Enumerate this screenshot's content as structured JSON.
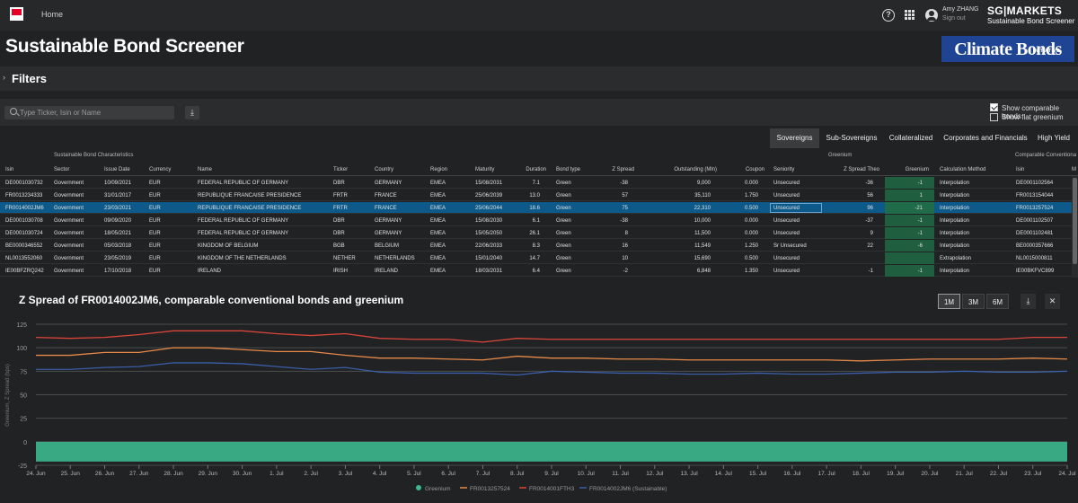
{
  "topbar": {
    "home": "Home",
    "user_name": "Amy ZHANG",
    "sign_out": "Sign out",
    "brand": "SG|MARKETS",
    "brand_sub": "Sustainable Bond Screener"
  },
  "page_title": "Sustainable Bond Screener",
  "partner_logo": {
    "text": "Climate Bonds",
    "initiative": "INITIATIVE"
  },
  "filters": {
    "label": "Filters"
  },
  "search": {
    "placeholder": "Type Ticker, Isin or Name"
  },
  "options": {
    "show_comparable": "Show comparable bonds",
    "show_flat": "Show flat greenium",
    "show_comparable_checked": true,
    "show_flat_checked": false
  },
  "tabs": [
    "Sovereigns",
    "Sub-Sovereigns",
    "Collateralized",
    "Corporates and Financials",
    "High Yield"
  ],
  "active_tab": "Sovereigns",
  "groups": {
    "characteristics": "Sustainable Bond Characteristics",
    "greenium": "Greenium",
    "conventional": "Comparable Conventiona"
  },
  "columns": [
    "Isin",
    "Sector",
    "Issue Date",
    "Currency",
    "Name",
    "Ticker",
    "Country",
    "Region",
    "Maturity",
    "Duration",
    "Bond type",
    "Z Spread",
    "Outstanding (Mln)",
    "Coupon",
    "Seniority",
    "Z Spread Theo",
    "Greenium",
    "Calculation Method",
    "Isin",
    "M"
  ],
  "rows": [
    [
      "DE0001030732",
      "Government",
      "10/09/2021",
      "EUR",
      "FEDERAL REPUBLIC OF GERMANY",
      "DBR",
      "GERMANY",
      "EMEA",
      "15/08/2031",
      "7.1",
      "Green",
      "-38",
      "9,000",
      "0.000",
      "Unsecured",
      "-36",
      "-1",
      "Interpolation",
      "DE0001102564"
    ],
    [
      "FR0013234333",
      "Government",
      "31/01/2017",
      "EUR",
      "REPUBLIQUE FRANCAISE PRESIDENCE",
      "FRTR",
      "FRANCE",
      "EMEA",
      "25/06/2039",
      "13.0",
      "Green",
      "57",
      "35,110",
      "1.750",
      "Unsecured",
      "56",
      "1",
      "Interpolation",
      "FR0013154044"
    ],
    [
      "FR0014002JM6",
      "Government",
      "23/03/2021",
      "EUR",
      "REPUBLIQUE FRANCAISE PRESIDENCE",
      "FRTR",
      "FRANCE",
      "EMEA",
      "25/06/2044",
      "18.6",
      "Green",
      "75",
      "22,310",
      "0.500",
      "Unsecured",
      "96",
      "-21",
      "Interpolation",
      "FR0013257524"
    ],
    [
      "DE0001030708",
      "Government",
      "09/09/2020",
      "EUR",
      "FEDERAL REPUBLIC OF GERMANY",
      "DBR",
      "GERMANY",
      "EMEA",
      "15/08/2030",
      "6.1",
      "Green",
      "-38",
      "10,000",
      "0.000",
      "Unsecured",
      "-37",
      "-1",
      "Interpolation",
      "DE0001102507"
    ],
    [
      "DE0001030724",
      "Government",
      "18/05/2021",
      "EUR",
      "FEDERAL REPUBLIC OF GERMANY",
      "DBR",
      "GERMANY",
      "EMEA",
      "15/05/2050",
      "26.1",
      "Green",
      "8",
      "11,500",
      "0.000",
      "Unsecured",
      "9",
      "-1",
      "Interpolation",
      "DE0001102481"
    ],
    [
      "BE0000346552",
      "Government",
      "05/03/2018",
      "EUR",
      "KINGDOM OF BELGIUM",
      "BGB",
      "BELGIUM",
      "EMEA",
      "22/06/2033",
      "8.3",
      "Green",
      "16",
      "11,549",
      "1.250",
      "Sr Unsecured",
      "22",
      "-6",
      "Interpolation",
      "BE0000357666"
    ],
    [
      "NL0013552060",
      "Government",
      "23/05/2019",
      "EUR",
      "KINGDOM OF THE NETHERLANDS",
      "NETHER",
      "NETHERLANDS",
      "EMEA",
      "15/01/2040",
      "14.7",
      "Green",
      "10",
      "15,690",
      "0.500",
      "Unsecured",
      "",
      "",
      "Extrapolation",
      "NL0015000811"
    ],
    [
      "IE00BFZRQ242",
      "Government",
      "17/10/2018",
      "EUR",
      "IRELAND",
      "IRISH",
      "IRELAND",
      "EMEA",
      "18/03/2031",
      "6.4",
      "Green",
      "-2",
      "6,848",
      "1.350",
      "Unsecured",
      "-1",
      "-1",
      "Interpolation",
      "IE00BKFVC899"
    ]
  ],
  "selected_row": 2,
  "chart": {
    "title": "Z Spread of FR0014002JM6, comparable conventional bonds and greenium",
    "ranges": [
      "1M",
      "3M",
      "6M"
    ],
    "active_range": "1M"
  },
  "chart_data": {
    "type": "line",
    "ylabel": "Greenium, Z Spread (bps)",
    "ylim": [
      -25,
      125
    ],
    "yticks": [
      125,
      100,
      75,
      50,
      25,
      0,
      -25
    ],
    "grid": true,
    "legend_position": "bottom",
    "x": [
      "24. Jun",
      "25. Jun",
      "26. Jun",
      "27. Jun",
      "28. Jun",
      "29. Jun",
      "30. Jun",
      "1. Jul",
      "2. Jul",
      "3. Jul",
      "4. Jul",
      "5. Jul",
      "6. Jul",
      "7. Jul",
      "8. Jul",
      "9. Jul",
      "10. Jul",
      "11. Jul",
      "12. Jul",
      "13. Jul",
      "14. Jul",
      "15. Jul",
      "16. Jul",
      "17. Jul",
      "18. Jul",
      "19. Jul",
      "20. Jul",
      "21. Jul",
      "22. Jul",
      "23. Jul",
      "24. Jul"
    ],
    "series": [
      {
        "name": "Greenium",
        "type": "area",
        "color": "#3cb88e",
        "values": [
          -21,
          -21,
          -21,
          -21,
          -21,
          -21,
          -21,
          -21,
          -21,
          -21,
          -21,
          -21,
          -21,
          -21,
          -21,
          -21,
          -21,
          -21,
          -21,
          -21,
          -21,
          -21,
          -21,
          -21,
          -21,
          -21,
          -21,
          -21,
          -21,
          -21,
          -21
        ]
      },
      {
        "name": "FR0013257524",
        "type": "line",
        "color": "#e8894a",
        "values": [
          92,
          92,
          95,
          95,
          100,
          100,
          98,
          96,
          96,
          92,
          89,
          89,
          88,
          87,
          91,
          89,
          89,
          88,
          88,
          87,
          87,
          87,
          87,
          87,
          86,
          87,
          88,
          88,
          88,
          89,
          88
        ]
      },
      {
        "name": "FR0014001FTH3",
        "type": "line",
        "color": "#d9453a",
        "values": [
          111,
          110,
          111,
          114,
          118,
          118,
          118,
          115,
          113,
          115,
          110,
          109,
          109,
          106,
          110,
          109,
          109,
          109,
          109,
          109,
          109,
          109,
          109,
          109,
          109,
          109,
          109,
          109,
          109,
          111,
          111
        ]
      },
      {
        "name": "FR0014002JM6 (Sustainable)",
        "type": "line",
        "color": "#3a5ea8",
        "values": [
          77,
          77,
          79,
          80,
          84,
          84,
          83,
          80,
          77,
          79,
          74,
          73,
          73,
          73,
          71,
          75,
          74,
          73,
          73,
          72,
          72,
          73,
          72,
          72,
          73,
          74,
          74,
          75,
          74,
          74,
          75
        ]
      }
    ]
  }
}
